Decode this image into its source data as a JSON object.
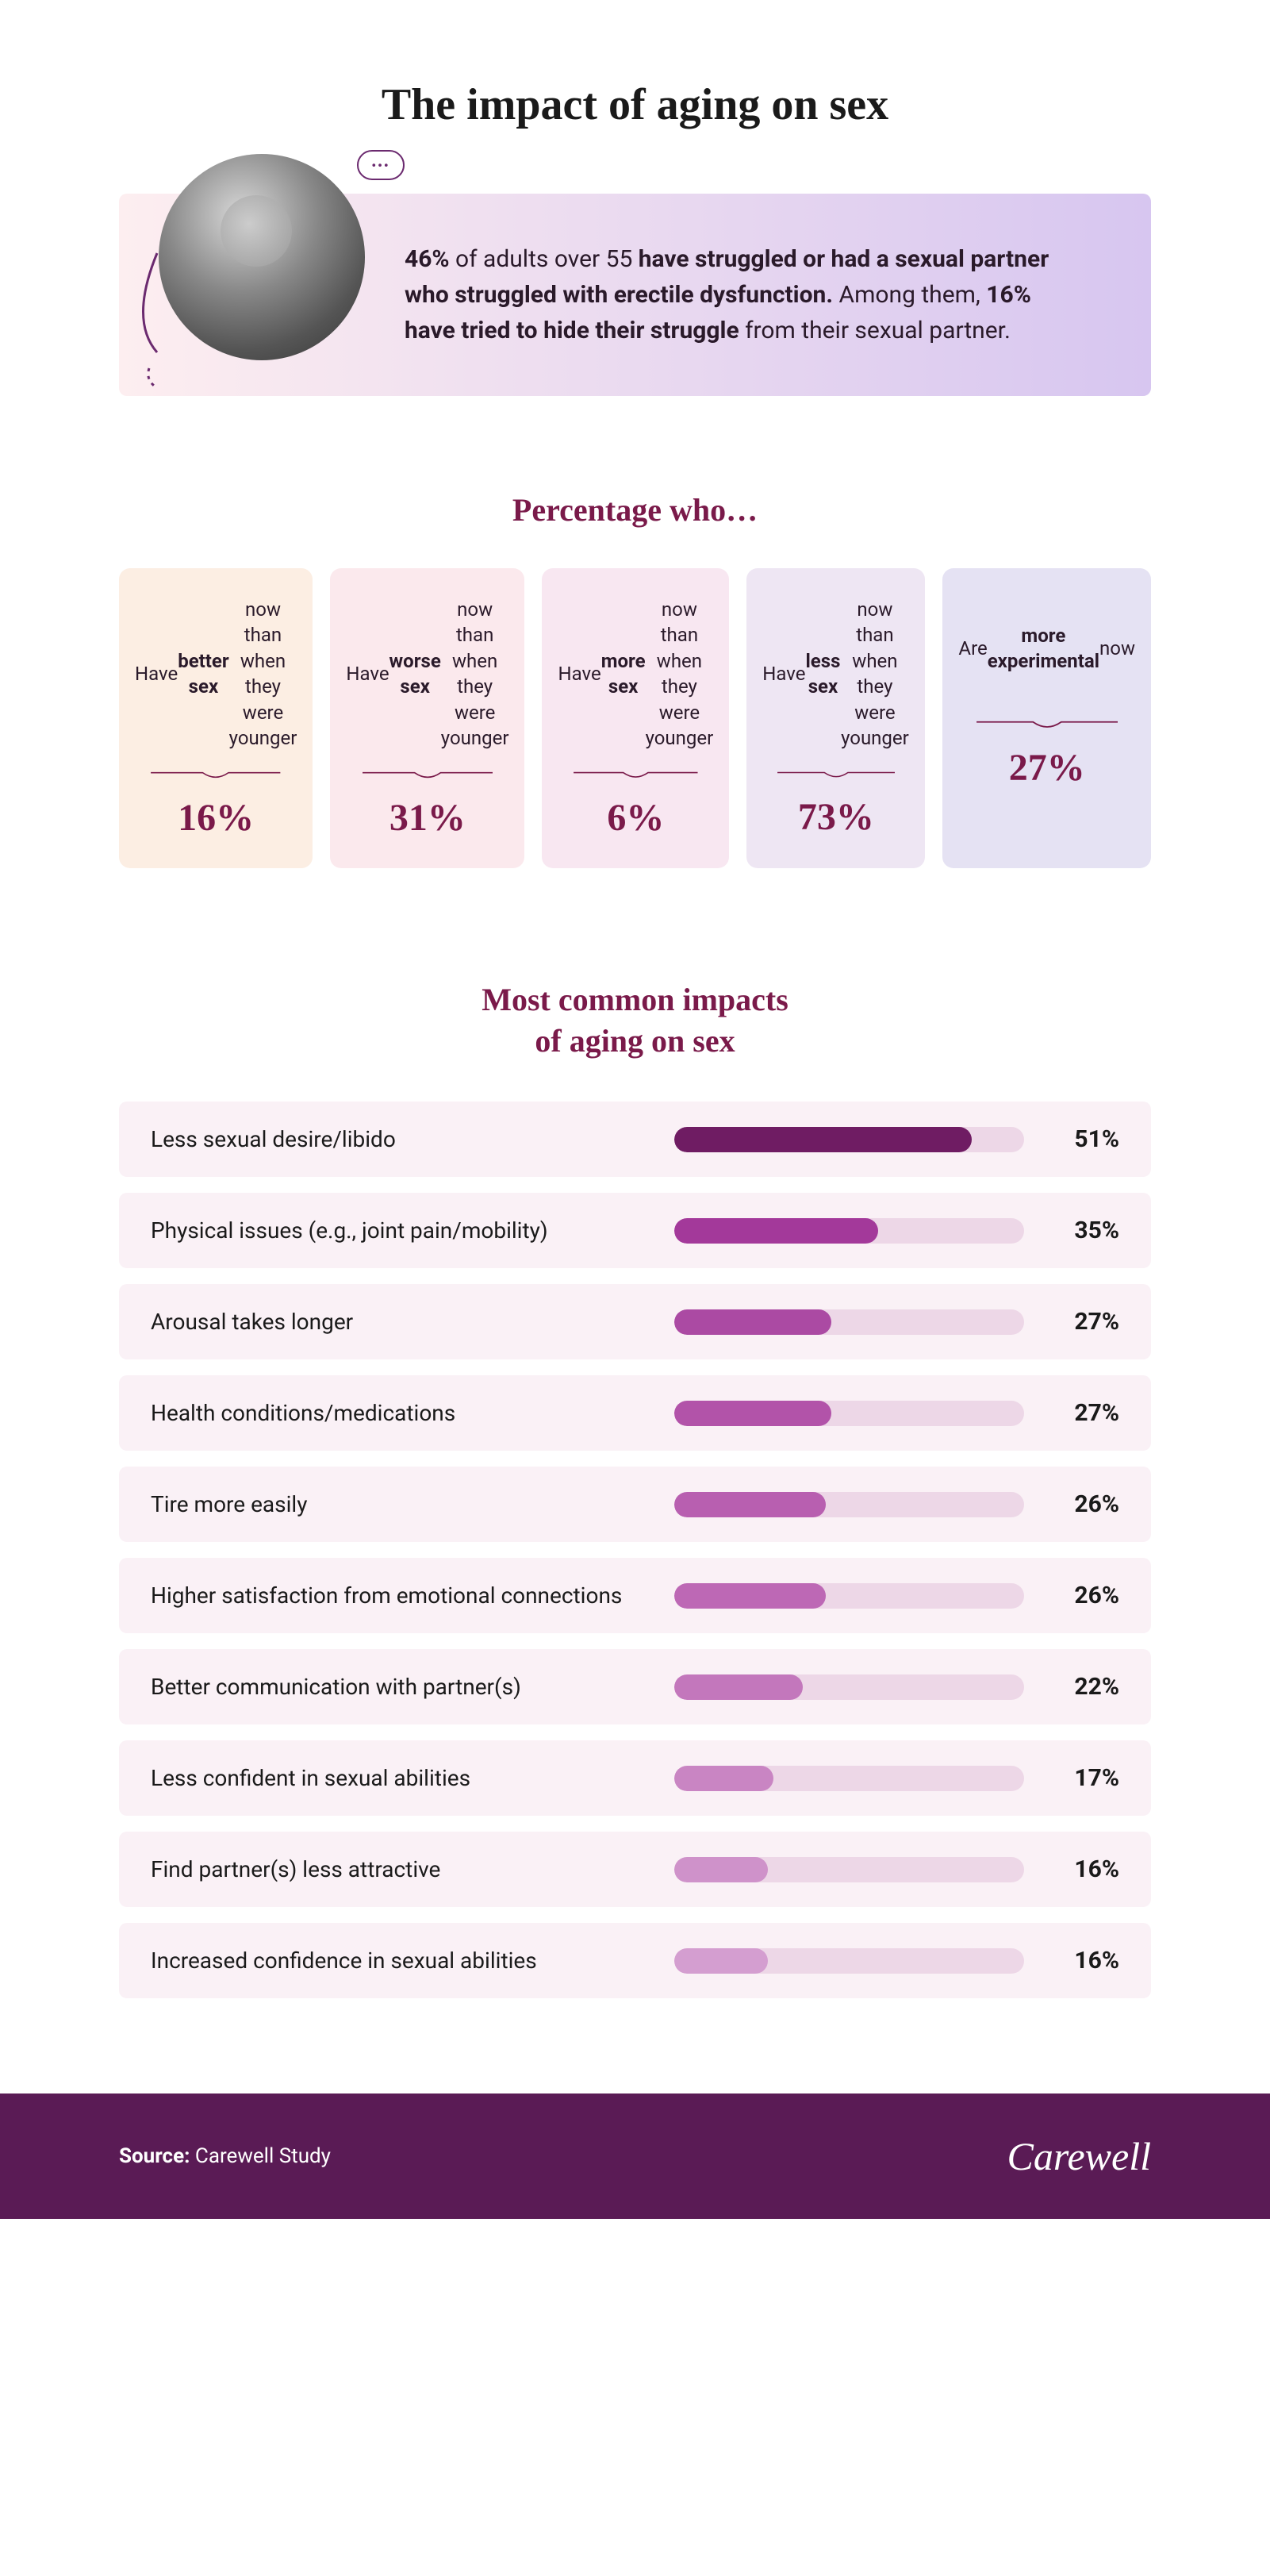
{
  "title": "The impact of aging on sex",
  "title_fontsize": 56,
  "hero": {
    "background_gradient_from": "#fdeef0",
    "background_gradient_to": "#d7c6f0",
    "curve_color": "#6b2a6f",
    "text_html": "<b>46%</b> of adults over 55 <b>have struggled or had a sexual partner who struggled with erectile dysfunction.</b> Among them, <b>16% have tried to hide their struggle</b> from their sexual partner.",
    "speech_bubble": "•••"
  },
  "percentage_section": {
    "title": "Percentage who…",
    "title_fontsize": 40,
    "divider_color": "#7a1a4a",
    "value_color": "#7a1a4a",
    "cards": [
      {
        "label_html": "Have <b>better sex</b> now than when they were younger",
        "value": "16%",
        "bg": "#fceee3"
      },
      {
        "label_html": "Have <b>worse sex</b> now than when they were younger",
        "value": "31%",
        "bg": "#fbe9ed"
      },
      {
        "label_html": "Have <b>more sex</b> now than when they were younger",
        "value": "6%",
        "bg": "#f8e7f1"
      },
      {
        "label_html": "Have <b>less sex</b> now than when they were younger",
        "value": "73%",
        "bg": "#eee6f3"
      },
      {
        "label_html": "Are <b>more experimental</b> now",
        "value": "27%",
        "bg": "#e5e2f3"
      }
    ]
  },
  "bars_section": {
    "title": "Most common impacts of aging on sex",
    "title_fontsize": 40,
    "row_bg": "#faf1f6",
    "track_bg": "#edd7e7",
    "bar_max_pct": 60,
    "label_fontsize": 28,
    "value_fontsize": 30,
    "rows": [
      {
        "label": "Less sexual desire/libido",
        "value": 51,
        "fill": "#6f1c63"
      },
      {
        "label": "Physical issues (e.g., joint pain/mobility)",
        "value": 35,
        "fill": "#a3399a"
      },
      {
        "label": "Arousal takes longer",
        "value": 27,
        "fill": "#ab4aa3"
      },
      {
        "label": "Health conditions/medications",
        "value": 27,
        "fill": "#b253a9"
      },
      {
        "label": "Tire more easily",
        "value": 26,
        "fill": "#b85fb0"
      },
      {
        "label": "Higher satisfaction from emotional connections",
        "value": 26,
        "fill": "#bd68b5"
      },
      {
        "label": "Better communication with partner(s)",
        "value": 22,
        "fill": "#c377bc"
      },
      {
        "label": "Less confident in sexual abilities",
        "value": 17,
        "fill": "#c985c3"
      },
      {
        "label": "Find partner(s) less attractive",
        "value": 16,
        "fill": "#cf92ca"
      },
      {
        "label": "Increased confidence in sexual abilities",
        "value": 16,
        "fill": "#d49ed0"
      }
    ]
  },
  "footer": {
    "bg": "#5a1b55",
    "source_label": "Source:",
    "source_value": "Carewell Study",
    "brand": "Carewell"
  }
}
